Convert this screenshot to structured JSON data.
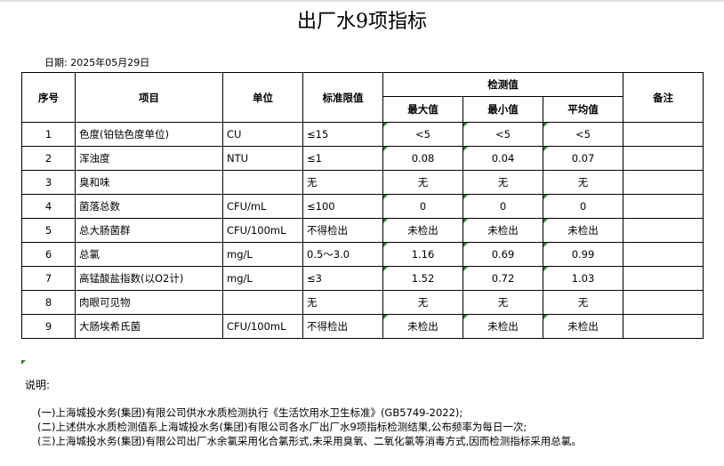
{
  "title": "出厂水9项指标",
  "date": "日期: 2025年05月29日",
  "headers": {
    "seq": "序号",
    "item": "项目",
    "unit": "单位",
    "limit": "标准限值",
    "measured": "检测值",
    "max": "最大值",
    "min": "最小值",
    "avg": "平均值",
    "remark": "备注"
  },
  "rows": [
    {
      "seq": "1",
      "item": "色度(铂钴色度单位)",
      "unit": "CU",
      "limit": "≤15",
      "max": "<5",
      "min": "<5",
      "avg": "<5",
      "remark": ""
    },
    {
      "seq": "2",
      "item": "浑浊度",
      "unit": "NTU",
      "limit": "≤1",
      "max": "0.08",
      "min": "0.04",
      "avg": "0.07",
      "remark": ""
    },
    {
      "seq": "3",
      "item": "臭和味",
      "unit": "",
      "limit": "无",
      "max": "无",
      "min": "无",
      "avg": "无",
      "remark": ""
    },
    {
      "seq": "4",
      "item": "菌落总数",
      "unit": "CFU/mL",
      "limit": "≤100",
      "max": "0",
      "min": "0",
      "avg": "0",
      "remark": ""
    },
    {
      "seq": "5",
      "item": "总大肠菌群",
      "unit": "CFU/100mL",
      "limit": "不得检出",
      "max": "未检出",
      "min": "未检出",
      "avg": "未检出",
      "remark": ""
    },
    {
      "seq": "6",
      "item": "总氯",
      "unit": "mg/L",
      "limit": "0.5～3.0",
      "max": "1.16",
      "min": "0.69",
      "avg": "0.99",
      "remark": ""
    },
    {
      "seq": "7",
      "item": "高锰酸盐指数(以O2计)",
      "unit": "mg/L",
      "limit": "≤3",
      "max": "1.52",
      "min": "0.72",
      "avg": "1.03",
      "remark": ""
    },
    {
      "seq": "8",
      "item": "肉眼可见物",
      "unit": "",
      "limit": "无",
      "max": "无",
      "min": "无",
      "avg": "无",
      "remark": ""
    },
    {
      "seq": "9",
      "item": "大肠埃希氏菌",
      "unit": "CFU/100mL",
      "limit": "不得检出",
      "max": "未检出",
      "min": "未检出",
      "avg": "未检出",
      "remark": ""
    }
  ],
  "notes": {
    "title": "说明:",
    "lines": [
      "(一)上海城投水务(集团)有限公司供水水质检测执行《生活饮用水卫生标准》(GB5749-2022);",
      "(二)上述供水水质检测值系上海城投水务(集团)有限公司各水厂出厂水9项指标检测结果,公布频率为每日一次;",
      "(三)上海城投水务(集团)有限公司出厂水余氯采用化合氯形式,未采用臭氧、二氧化氯等消毒方式,因而检测指标采用总氯。"
    ]
  },
  "colors": {
    "cell_marker": "#1a8a1a"
  }
}
